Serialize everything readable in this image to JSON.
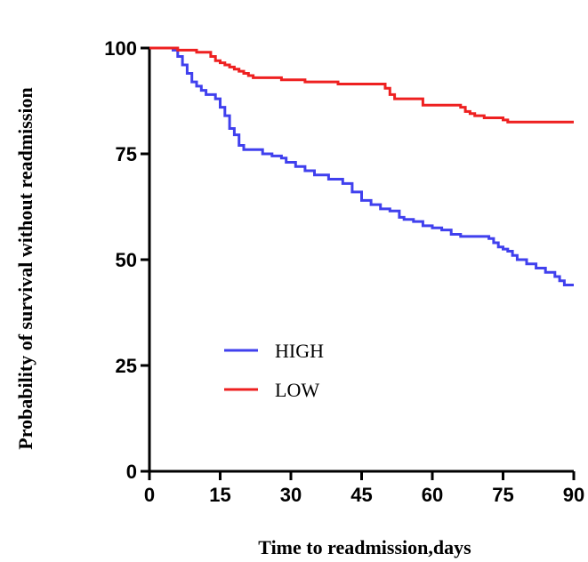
{
  "chart_data": {
    "type": "line",
    "xlabel": "Time to readmission,days",
    "ylabel": "Probability of survival without readmission",
    "xlim": [
      0,
      90
    ],
    "ylim": [
      0,
      100
    ],
    "xticks": [
      0,
      15,
      30,
      45,
      60,
      75,
      90
    ],
    "yticks": [
      0,
      25,
      50,
      75,
      100
    ],
    "grid": false,
    "legend_position": "lower-left",
    "series": [
      {
        "name": "HIGH",
        "color": "#4040ee",
        "x": [
          0,
          5,
          6,
          7,
          8,
          9,
          10,
          11,
          12,
          14,
          15,
          16,
          17,
          18,
          19,
          20,
          22,
          24,
          26,
          28,
          29,
          31,
          33,
          35,
          38,
          41,
          43,
          45,
          47,
          49,
          51,
          53,
          54,
          56,
          58,
          60,
          62,
          64,
          66,
          68,
          70,
          72,
          73,
          74,
          75,
          76,
          77,
          78,
          80,
          82,
          84,
          86,
          87,
          88,
          90
        ],
        "y": [
          100,
          99.5,
          98,
          96,
          94,
          92,
          91,
          90,
          89,
          88,
          86,
          84,
          81,
          79.5,
          77,
          76,
          76,
          75,
          74.5,
          74,
          73,
          72,
          71,
          70,
          69,
          68,
          66,
          64,
          63,
          62,
          61.5,
          60,
          59.5,
          59,
          58,
          57.5,
          57,
          56,
          55.5,
          55.5,
          55.5,
          55,
          54,
          53,
          52.5,
          52,
          51,
          50,
          49,
          48,
          47,
          46,
          45,
          44,
          44
        ]
      },
      {
        "name": "LOW",
        "color": "#ee2020",
        "x": [
          0,
          4,
          6,
          8,
          10,
          13,
          14,
          15,
          16,
          17,
          18,
          19,
          20,
          21,
          22,
          28,
          33,
          38,
          40,
          44,
          50,
          51,
          52,
          54,
          58,
          62,
          64,
          66,
          67,
          68,
          69,
          71,
          74,
          75,
          76,
          90
        ],
        "y": [
          100,
          100,
          99.5,
          99.5,
          99,
          98,
          97,
          96.5,
          96,
          95.5,
          95,
          94.5,
          94,
          93.5,
          93,
          92.5,
          92,
          92,
          91.5,
          91.5,
          90.5,
          89,
          88,
          88,
          86.5,
          86.5,
          86.5,
          86,
          85,
          84.5,
          84,
          83.5,
          83.5,
          83,
          82.5,
          82.5
        ]
      }
    ]
  }
}
